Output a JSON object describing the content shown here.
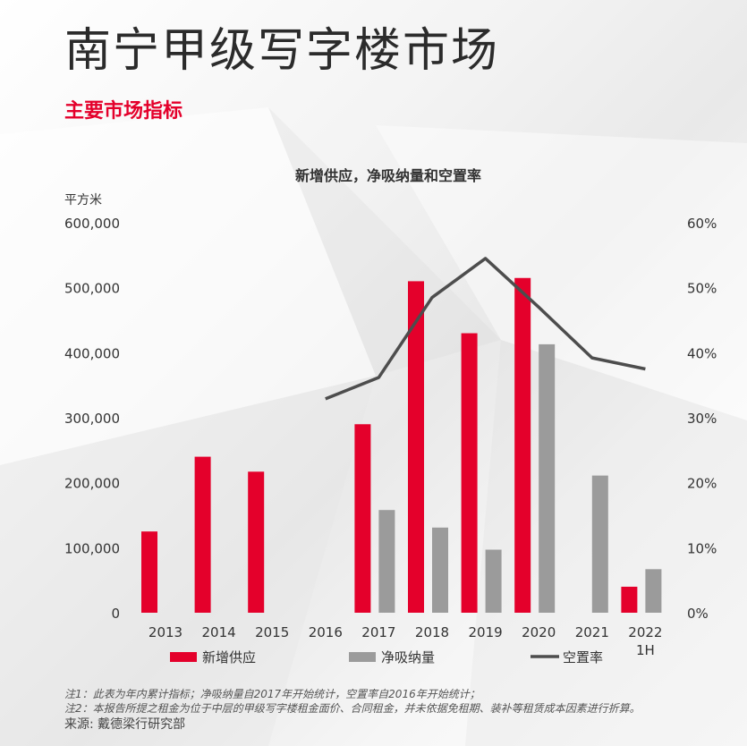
{
  "page": {
    "title": "南宁甲级写字楼市场",
    "subtitle": "主要市场指标",
    "notes": [
      "注1：此表为年内累计指标；净吸纳量自2017年开始统计，空置率自2016年开始统计；",
      "注2：本报告所提之租金为位于中层的甲级写字楼租金面价、合同租金，并未依据免租期、装补等租赁成本因素进行折算。"
    ],
    "source": "来源: 戴德梁行研究部"
  },
  "colors": {
    "supply": "#e4002b",
    "absorption": "#9b9b9b",
    "vacancy": "#4d4d4d",
    "title": "#2b2b2b",
    "accent": "#e4002b"
  },
  "chart_data": {
    "type": "bar",
    "title": "新增供应，净吸纳量和空置率",
    "ylabel_left": "平方米",
    "categories": [
      "2013",
      "2014",
      "2015",
      "2016",
      "2017",
      "2018",
      "2019",
      "2020",
      "2021",
      "2022\n1H"
    ],
    "y_left_ticks": [
      "600,000",
      "500,000",
      "400,000",
      "300,000",
      "200,000",
      "100,000",
      "0"
    ],
    "y_right_ticks": [
      "60%",
      "50%",
      "40%",
      "30%",
      "20%",
      "10%",
      "0%"
    ],
    "ylim_left": [
      0,
      600000
    ],
    "ylim_right": [
      0,
      60
    ],
    "series": [
      {
        "name": "新增供应",
        "kind": "bar",
        "color": "#e4002b",
        "values": [
          125000,
          240000,
          217000,
          0,
          290000,
          510000,
          430000,
          515000,
          0,
          40000
        ]
      },
      {
        "name": "净吸纳量",
        "kind": "bar",
        "color": "#9b9b9b",
        "values": [
          null,
          null,
          null,
          null,
          158000,
          131000,
          97000,
          413000,
          211000,
          67000
        ]
      },
      {
        "name": "空置率",
        "kind": "line",
        "axis": "right",
        "color": "#4d4d4d",
        "values": [
          null,
          null,
          null,
          32.9,
          36.2,
          48.5,
          54.5,
          47.0,
          39.2,
          37.5
        ]
      }
    ],
    "legend": [
      "新增供应",
      "净吸纳量",
      "空置率"
    ],
    "legend_position": "bottom",
    "grid": false
  }
}
